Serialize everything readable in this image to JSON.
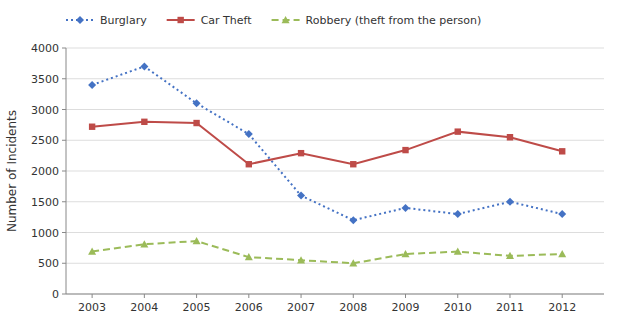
{
  "chart_data": {
    "type": "line",
    "y_label": "Number of Incidents",
    "x": [
      2003,
      2004,
      2005,
      2006,
      2007,
      2008,
      2009,
      2010,
      2011,
      2012
    ],
    "xlim": [
      2002.5,
      2012.8
    ],
    "xticks": [
      2003,
      2004,
      2005,
      2006,
      2007,
      2008,
      2009,
      2010,
      2011,
      2012
    ],
    "ylim": [
      0,
      4000
    ],
    "yticks": [
      0,
      500,
      1000,
      1500,
      2000,
      2500,
      3000,
      3500,
      4000
    ],
    "grid": true,
    "legend": "top",
    "series": [
      {
        "name": "Burglary",
        "color": "#4472C4",
        "marker": "diamond",
        "line_style": "dotted",
        "values": [
          3400,
          3700,
          3100,
          2600,
          1600,
          1200,
          1400,
          1300,
          1500,
          1300
        ]
      },
      {
        "name": "Car Theft",
        "color": "#BE4B48",
        "marker": "square",
        "line_style": "solid",
        "values": [
          2720,
          2800,
          2780,
          2110,
          2290,
          2110,
          2340,
          2640,
          2550,
          2320
        ]
      },
      {
        "name": "Robbery (theft from the person)",
        "color": "#9BBB59",
        "marker": "triangle",
        "line_style": "dashed",
        "values": [
          690,
          810,
          860,
          600,
          550,
          500,
          650,
          690,
          620,
          650
        ]
      }
    ]
  }
}
